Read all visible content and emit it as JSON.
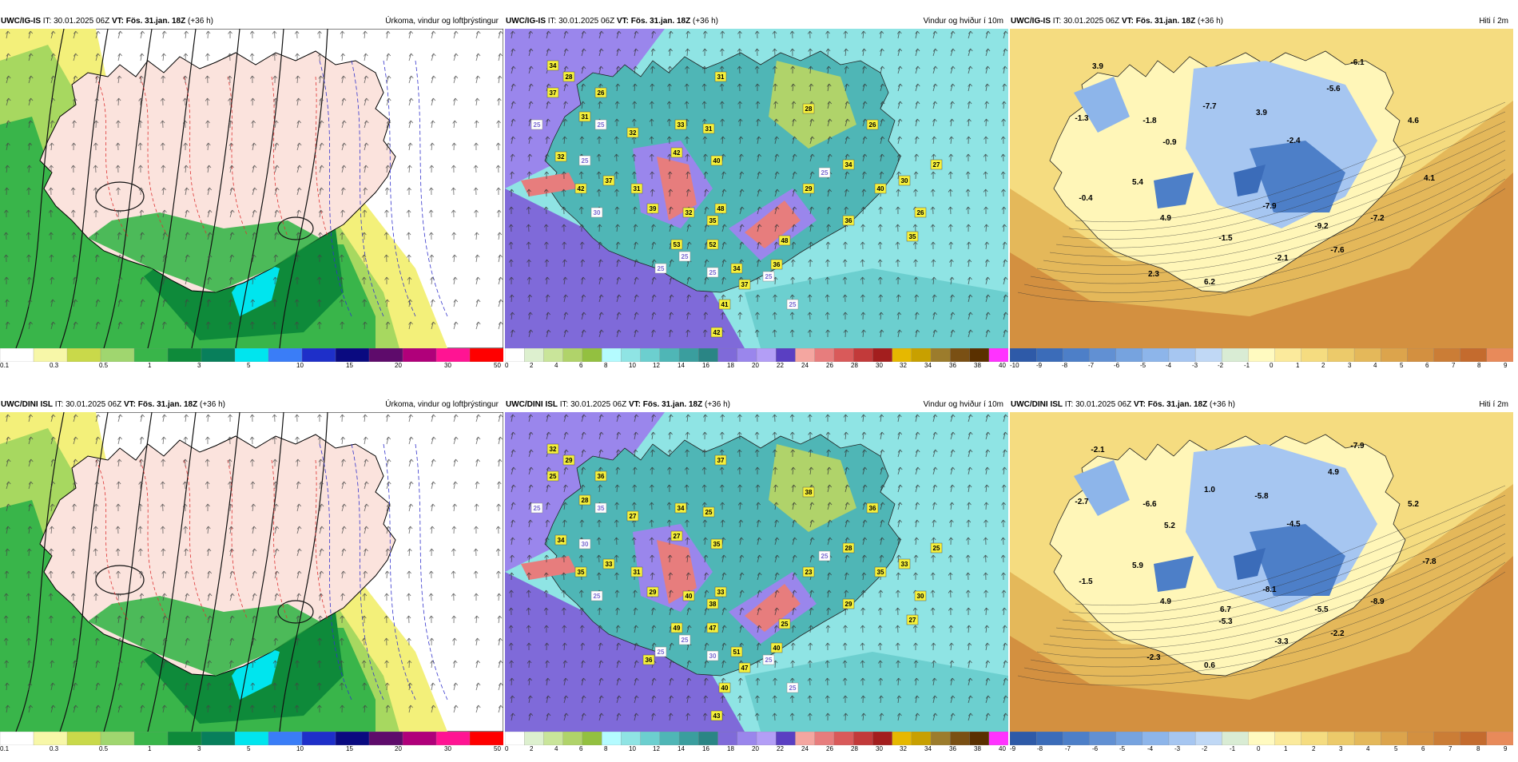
{
  "common": {
    "issue_label": "IT:",
    "issue_time": "30.01.2025 06Z",
    "valid_label": "VT:",
    "valid_time": "Fös. 31.jan. 18Z",
    "lead": "(+36 h)"
  },
  "rows": [
    {
      "model": "UWC/IG-IS",
      "panels": [
        {
          "title": "Úrkoma, vindur og loftþrýstingur",
          "kind": "precip"
        },
        {
          "title": "Vindur og hviður í 10m",
          "kind": "wind",
          "labels_yellow": [
            "34",
            "28",
            "37",
            "26",
            "31",
            "32",
            "33",
            "31",
            "42",
            "40",
            "31",
            "28",
            "26",
            "34",
            "29",
            "36",
            "40",
            "32",
            "37",
            "31",
            "39",
            "32",
            "35",
            "42",
            "52",
            "53",
            "48",
            "34",
            "37",
            "30",
            "26",
            "35",
            "27",
            "48",
            "36",
            "41",
            "42"
          ],
          "labels_white": [
            "25",
            "25",
            "30",
            "25",
            "25",
            "25",
            "25",
            "25",
            "25",
            "25"
          ]
        },
        {
          "title": "Hiti í 2m",
          "kind": "temp",
          "values": [
            "3.9",
            "-1.8",
            "-1.3",
            "-0.9",
            "-7.7",
            "3.9",
            "-5.6",
            "-6.1",
            "4.6",
            "-2.4",
            "5.4",
            "-0.4",
            "4.9",
            "-7.9",
            "-9.2",
            "-7.2",
            "-1.5",
            "-7.6",
            "-2.1",
            "4.1",
            "2.3",
            "6.2"
          ]
        }
      ]
    },
    {
      "model": "UWC/DINI ISL",
      "panels": [
        {
          "title": "Úrkoma, vindur og loftþrýstingur",
          "kind": "precip"
        },
        {
          "title": "Vindur og hviður í 10m",
          "kind": "wind",
          "labels_yellow": [
            "32",
            "29",
            "25",
            "36",
            "28",
            "27",
            "34",
            "25",
            "27",
            "35",
            "37",
            "38",
            "36",
            "28",
            "23",
            "29",
            "35",
            "34",
            "33",
            "31",
            "29",
            "40",
            "38",
            "35",
            "47",
            "49",
            "33",
            "51",
            "47",
            "33",
            "30",
            "27",
            "25",
            "25",
            "40",
            "40",
            "43",
            "36"
          ],
          "labels_white": [
            "25",
            "30",
            "25",
            "25",
            "25",
            "30",
            "25",
            "25",
            "35",
            "25"
          ]
        },
        {
          "title": "Hiti í 2m",
          "kind": "temp",
          "values": [
            "-2.1",
            "-6.6",
            "-2.7",
            "5.2",
            "1.0",
            "-5.8",
            "4.9",
            "-7.9",
            "5.2",
            "-4.5",
            "5.9",
            "-1.5",
            "4.9",
            "-8.1",
            "-5.5",
            "-8.9",
            "-5.3",
            "-2.2",
            "-3.3",
            "-7.8",
            "-2.3",
            "0.6",
            "6.7"
          ]
        }
      ]
    }
  ],
  "legends": {
    "precip": {
      "colors": [
        "#ffffff",
        "#f7f7a8",
        "#c9d94a",
        "#a0d66f",
        "#39b54a",
        "#0e8a3a",
        "#087f5b",
        "#00e5ee",
        "#3a7df7",
        "#1e2fc9",
        "#0a0a80",
        "#5e0b6b",
        "#b0007a",
        "#ff1493",
        "#ff0000"
      ],
      "ticks": [
        "0.1",
        "0.3",
        "0.5",
        "1",
        "3",
        "5",
        "10",
        "15",
        "20",
        "30",
        "50"
      ]
    },
    "wind": {
      "colors": [
        "#ffffff",
        "#ddf0cf",
        "#c9e59a",
        "#b0d36a",
        "#93c040",
        "#b4fbff",
        "#8fe4e4",
        "#6ccfcf",
        "#4fb6b6",
        "#3a9e9e",
        "#2a8585",
        "#7f6ad9",
        "#9a86ec",
        "#b39ef6",
        "#5a3fc2",
        "#f4a6a0",
        "#e77d7d",
        "#d95a5a",
        "#c23a3a",
        "#a31e1e",
        "#e6b800",
        "#c8a000",
        "#9c7c2c",
        "#7a5014",
        "#5a3000",
        "#ff33ff"
      ],
      "ticks": [
        "0",
        "2",
        "4",
        "6",
        "8",
        "10",
        "12",
        "14",
        "16",
        "18",
        "20",
        "22",
        "24",
        "26",
        "28",
        "30",
        "32",
        "34",
        "36",
        "38",
        "40"
      ]
    },
    "temp": {
      "colors": [
        "#2e5aa8",
        "#3b6cb9",
        "#4d7fc8",
        "#6190d3",
        "#76a3df",
        "#8db5ea",
        "#a6c6f1",
        "#c0d8f5",
        "#d9ecd4",
        "#fffac0",
        "#fbea9c",
        "#f5dc80",
        "#ecca6a",
        "#e4b85a",
        "#dca44c",
        "#d39040",
        "#cb7d36",
        "#c46b2e",
        "#e88a5a"
      ],
      "ticks_top": [
        "-10",
        "-9",
        "-8",
        "-7",
        "-6",
        "-5",
        "-4",
        "-3",
        "-2",
        "-1",
        "0",
        "1",
        "2",
        "3",
        "4",
        "5",
        "6",
        "7",
        "8",
        "9"
      ],
      "ticks_bottom": [
        "-9",
        "-8",
        "-7",
        "-6",
        "-5",
        "-4",
        "-3",
        "-2",
        "-1",
        "0",
        "1",
        "2",
        "3",
        "4",
        "5",
        "6",
        "7",
        "8",
        "9"
      ]
    }
  }
}
